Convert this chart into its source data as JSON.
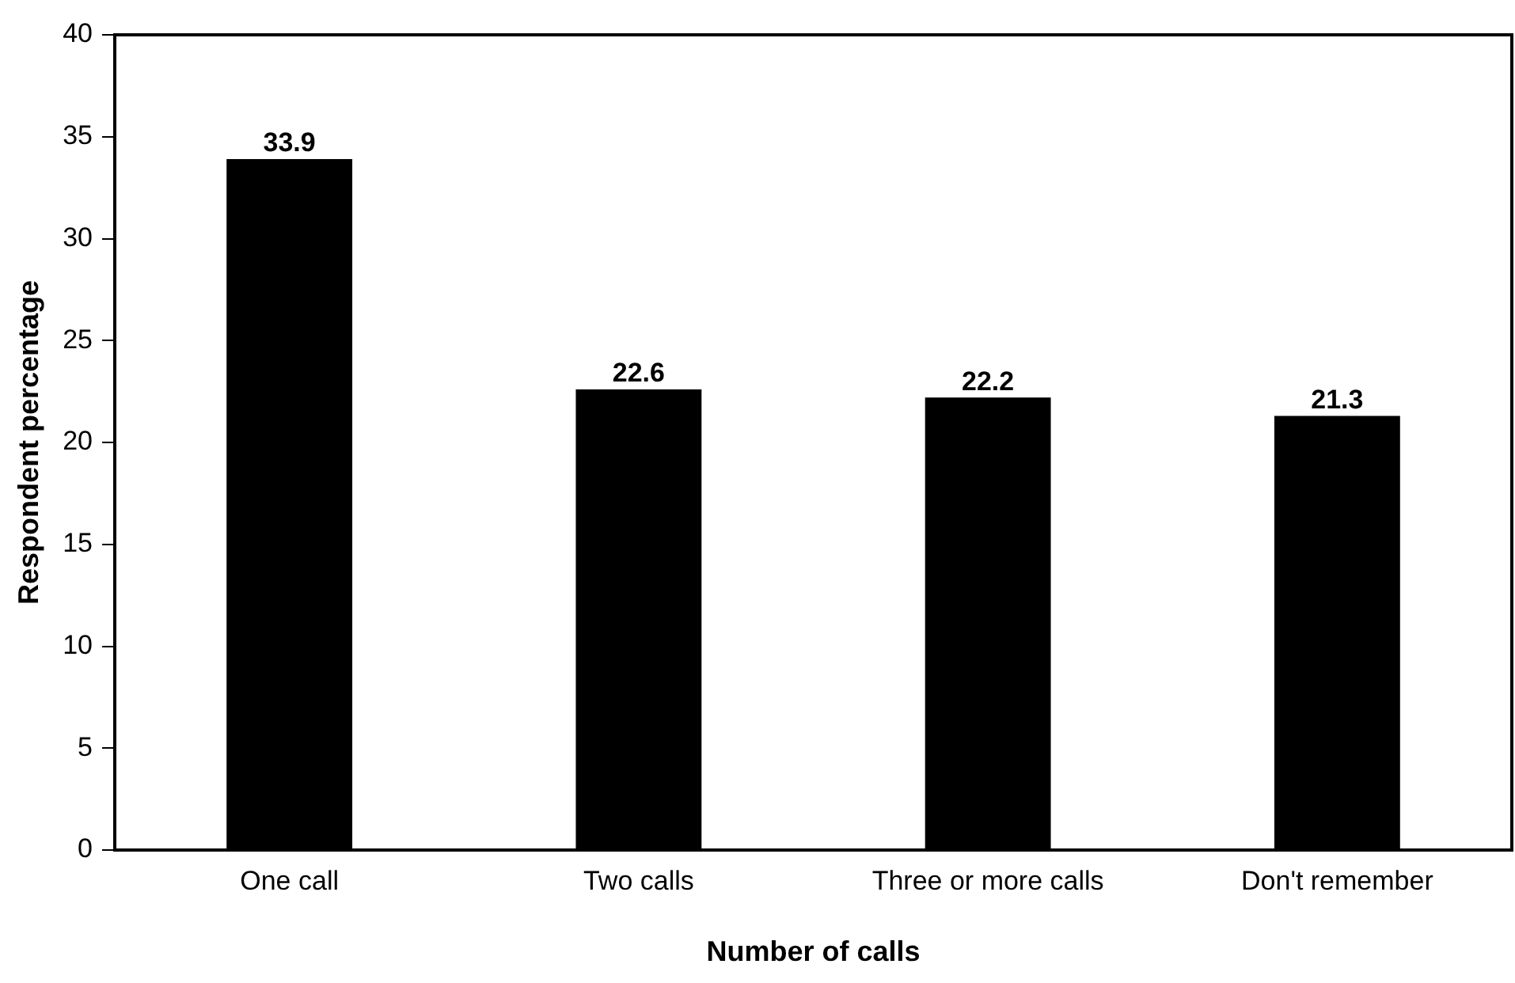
{
  "chart_data": {
    "type": "bar",
    "xlabel": "Number of calls",
    "ylabel": "Respondent percentage",
    "categories": [
      "One call",
      "Two calls",
      "Three or more calls",
      "Don't remember"
    ],
    "values": [
      33.9,
      22.6,
      22.2,
      21.3
    ],
    "color": "#000000",
    "ylim": [
      0,
      40
    ],
    "yticks": [
      0,
      5,
      10,
      15,
      20,
      25,
      30,
      35,
      40
    ],
    "grid": false,
    "legend": false,
    "data_labels": true
  }
}
